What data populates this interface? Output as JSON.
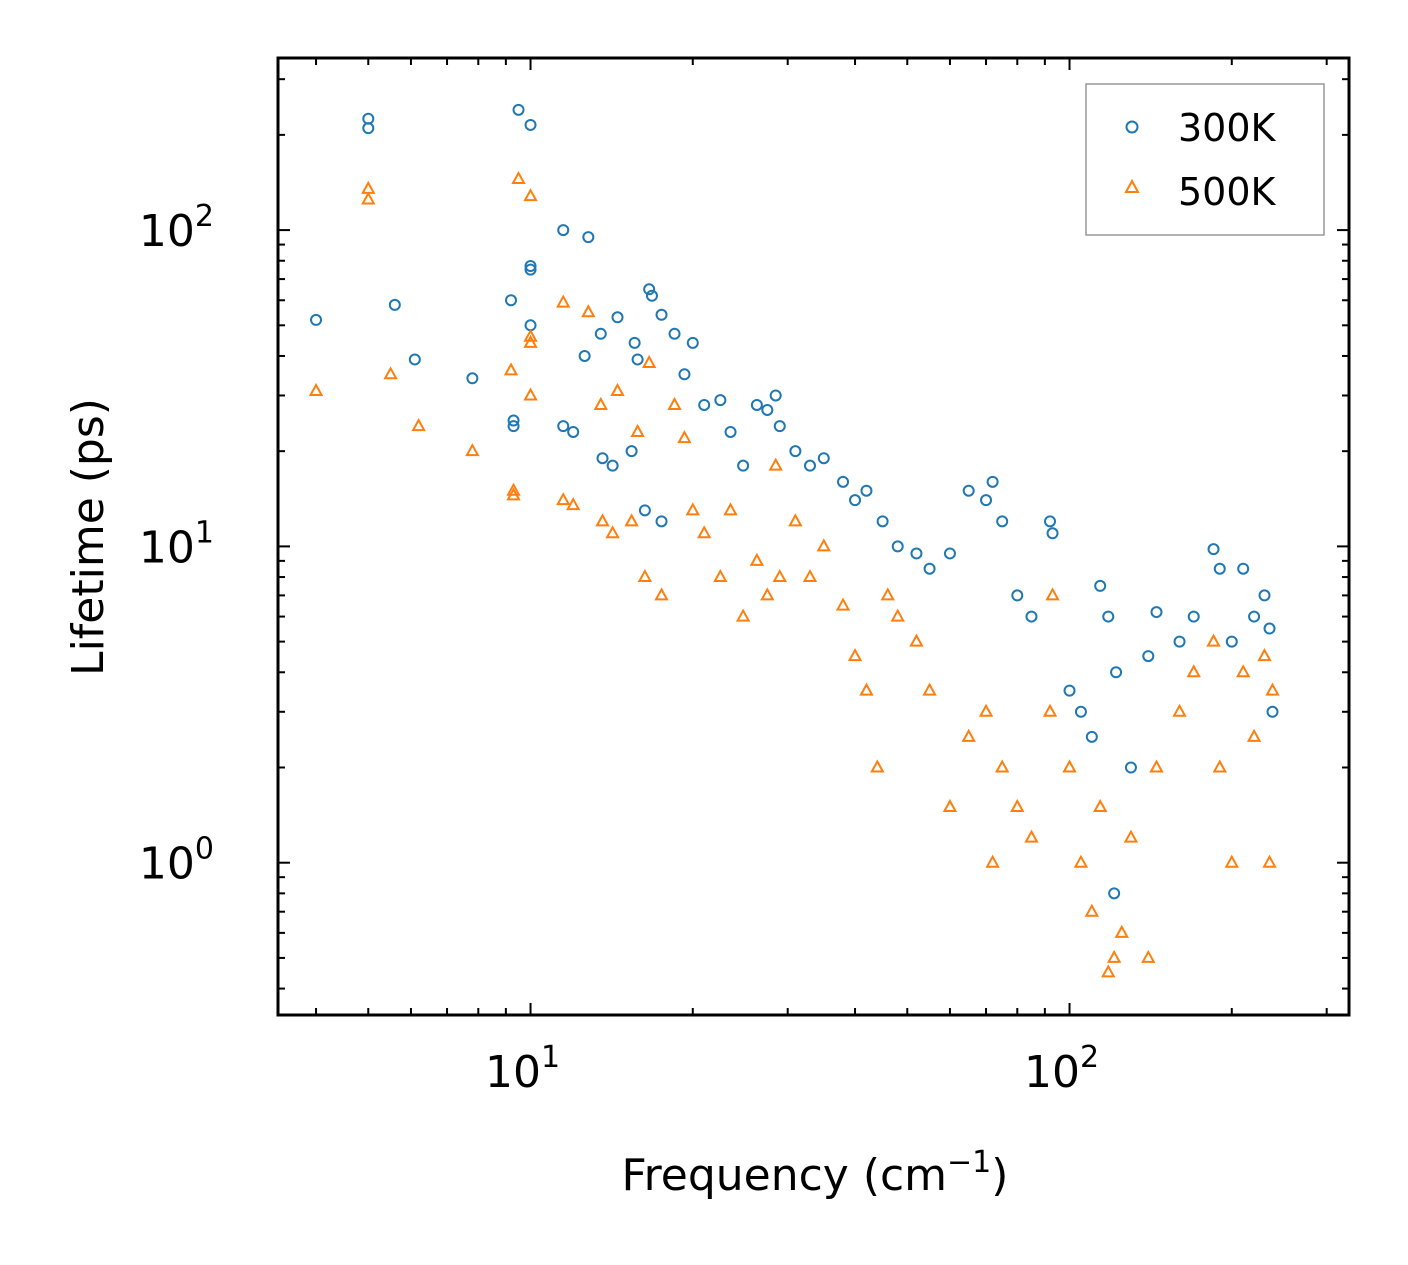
{
  "chart_data": {
    "type": "scatter",
    "title": "",
    "xlabel": "Frequency (cm",
    "xlabel_sup": "−1",
    "xlabel_tail": ")",
    "ylabel": "Lifetime (ps)",
    "xscale": "log",
    "yscale": "log",
    "xlim": [
      3.4,
      330
    ],
    "ylim": [
      0.33,
      350
    ],
    "x_ticks": [
      {
        "value": 10,
        "base": "10",
        "exp": "1"
      },
      {
        "value": 100,
        "base": "10",
        "exp": "2"
      }
    ],
    "y_ticks": [
      {
        "value": 1,
        "base": "10",
        "exp": "0"
      },
      {
        "value": 10,
        "base": "10",
        "exp": "1"
      },
      {
        "value": 100,
        "base": "10",
        "exp": "2"
      }
    ],
    "legend_position": "top-right",
    "series": [
      {
        "name": "300K",
        "marker": "circle",
        "color": "#1f77b4",
        "points": [
          [
            4.0,
            52
          ],
          [
            5.0,
            210
          ],
          [
            5.0,
            225
          ],
          [
            5.6,
            58
          ],
          [
            6.1,
            39
          ],
          [
            7.8,
            34
          ],
          [
            9.2,
            60
          ],
          [
            9.3,
            25
          ],
          [
            9.3,
            24
          ],
          [
            9.5,
            240
          ],
          [
            10.0,
            215
          ],
          [
            10.0,
            77
          ],
          [
            10.0,
            75
          ],
          [
            10.0,
            50
          ],
          [
            11.5,
            100
          ],
          [
            11.5,
            24
          ],
          [
            12.0,
            23
          ],
          [
            12.8,
            95
          ],
          [
            12.6,
            40
          ],
          [
            13.5,
            47
          ],
          [
            13.6,
            19
          ],
          [
            14.2,
            18
          ],
          [
            14.5,
            53
          ],
          [
            15.4,
            20
          ],
          [
            15.6,
            44
          ],
          [
            15.8,
            39
          ],
          [
            16.3,
            13
          ],
          [
            16.6,
            65
          ],
          [
            16.8,
            62
          ],
          [
            17.5,
            54
          ],
          [
            17.5,
            12
          ],
          [
            18.5,
            47
          ],
          [
            19.3,
            35
          ],
          [
            20.0,
            44
          ],
          [
            21.0,
            28
          ],
          [
            22.5,
            29
          ],
          [
            23.5,
            23
          ],
          [
            24.8,
            18
          ],
          [
            26.3,
            28
          ],
          [
            27.5,
            27
          ],
          [
            28.5,
            30
          ],
          [
            29.0,
            24
          ],
          [
            31.0,
            20
          ],
          [
            33.0,
            18
          ],
          [
            35.0,
            19
          ],
          [
            38.0,
            16
          ],
          [
            40.0,
            14
          ],
          [
            42.0,
            15
          ],
          [
            45.0,
            12
          ],
          [
            48.0,
            10
          ],
          [
            52.0,
            9.5
          ],
          [
            55.0,
            8.5
          ],
          [
            60.0,
            9.5
          ],
          [
            65.0,
            15
          ],
          [
            70.0,
            14
          ],
          [
            72.0,
            16
          ],
          [
            75.0,
            12
          ],
          [
            80.0,
            7.0
          ],
          [
            85.0,
            6.0
          ],
          [
            92.0,
            12
          ],
          [
            93.0,
            11
          ],
          [
            100.0,
            3.5
          ],
          [
            105.0,
            3.0
          ],
          [
            110.0,
            2.5
          ],
          [
            114.0,
            7.5
          ],
          [
            118.0,
            6.0
          ],
          [
            121.0,
            0.8
          ],
          [
            122.0,
            4.0
          ],
          [
            130.0,
            2.0
          ],
          [
            140.0,
            4.5
          ],
          [
            145.0,
            6.2
          ],
          [
            160.0,
            5.0
          ],
          [
            170.0,
            6.0
          ],
          [
            185.0,
            9.8
          ],
          [
            190.0,
            8.5
          ],
          [
            200.0,
            5.0
          ],
          [
            210.0,
            8.5
          ],
          [
            220.0,
            6.0
          ],
          [
            230.0,
            7.0
          ],
          [
            235.0,
            5.5
          ],
          [
            238.0,
            3.0
          ]
        ]
      },
      {
        "name": "500K",
        "marker": "triangle",
        "color": "#ff7f0e",
        "points": [
          [
            4.0,
            31
          ],
          [
            5.0,
            125
          ],
          [
            5.0,
            135
          ],
          [
            5.5,
            35
          ],
          [
            6.2,
            24
          ],
          [
            7.8,
            20
          ],
          [
            9.2,
            36
          ],
          [
            9.3,
            15
          ],
          [
            9.3,
            14.5
          ],
          [
            9.5,
            145
          ],
          [
            10.0,
            128
          ],
          [
            10.0,
            46
          ],
          [
            10.0,
            44
          ],
          [
            10.0,
            30
          ],
          [
            11.5,
            59
          ],
          [
            11.5,
            14
          ],
          [
            12.0,
            13.5
          ],
          [
            12.8,
            55
          ],
          [
            13.5,
            28
          ],
          [
            13.6,
            12
          ],
          [
            14.2,
            11
          ],
          [
            14.5,
            31
          ],
          [
            15.4,
            12
          ],
          [
            15.8,
            23
          ],
          [
            16.3,
            8
          ],
          [
            16.6,
            38
          ],
          [
            17.5,
            7
          ],
          [
            18.5,
            28
          ],
          [
            19.3,
            22
          ],
          [
            20.0,
            13
          ],
          [
            21.0,
            11
          ],
          [
            22.5,
            8
          ],
          [
            23.5,
            13
          ],
          [
            24.8,
            6
          ],
          [
            26.3,
            9
          ],
          [
            27.5,
            7
          ],
          [
            28.5,
            18
          ],
          [
            29.0,
            8
          ],
          [
            31.0,
            12
          ],
          [
            33.0,
            8
          ],
          [
            35.0,
            10
          ],
          [
            38.0,
            6.5
          ],
          [
            40.0,
            4.5
          ],
          [
            42.0,
            3.5
          ],
          [
            44.0,
            2.0
          ],
          [
            46.0,
            7
          ],
          [
            48.0,
            6
          ],
          [
            52.0,
            5
          ],
          [
            55.0,
            3.5
          ],
          [
            60.0,
            1.5
          ],
          [
            65.0,
            2.5
          ],
          [
            70.0,
            3.0
          ],
          [
            72.0,
            1.0
          ],
          [
            75.0,
            2.0
          ],
          [
            80.0,
            1.5
          ],
          [
            85.0,
            1.2
          ],
          [
            92.0,
            3.0
          ],
          [
            93.0,
            7.0
          ],
          [
            100.0,
            2.0
          ],
          [
            105.0,
            1.0
          ],
          [
            110.0,
            0.7
          ],
          [
            114.0,
            1.5
          ],
          [
            118.0,
            0.45
          ],
          [
            121.0,
            0.5
          ],
          [
            125.0,
            0.6
          ],
          [
            130.0,
            1.2
          ],
          [
            140.0,
            0.5
          ],
          [
            145.0,
            2.0
          ],
          [
            160.0,
            3.0
          ],
          [
            170.0,
            4.0
          ],
          [
            185.0,
            5.0
          ],
          [
            190.0,
            2.0
          ],
          [
            200.0,
            1.0
          ],
          [
            210.0,
            4.0
          ],
          [
            220.0,
            2.5
          ],
          [
            230.0,
            4.5
          ],
          [
            235.0,
            1.0
          ],
          [
            238.0,
            3.5
          ]
        ]
      }
    ]
  }
}
